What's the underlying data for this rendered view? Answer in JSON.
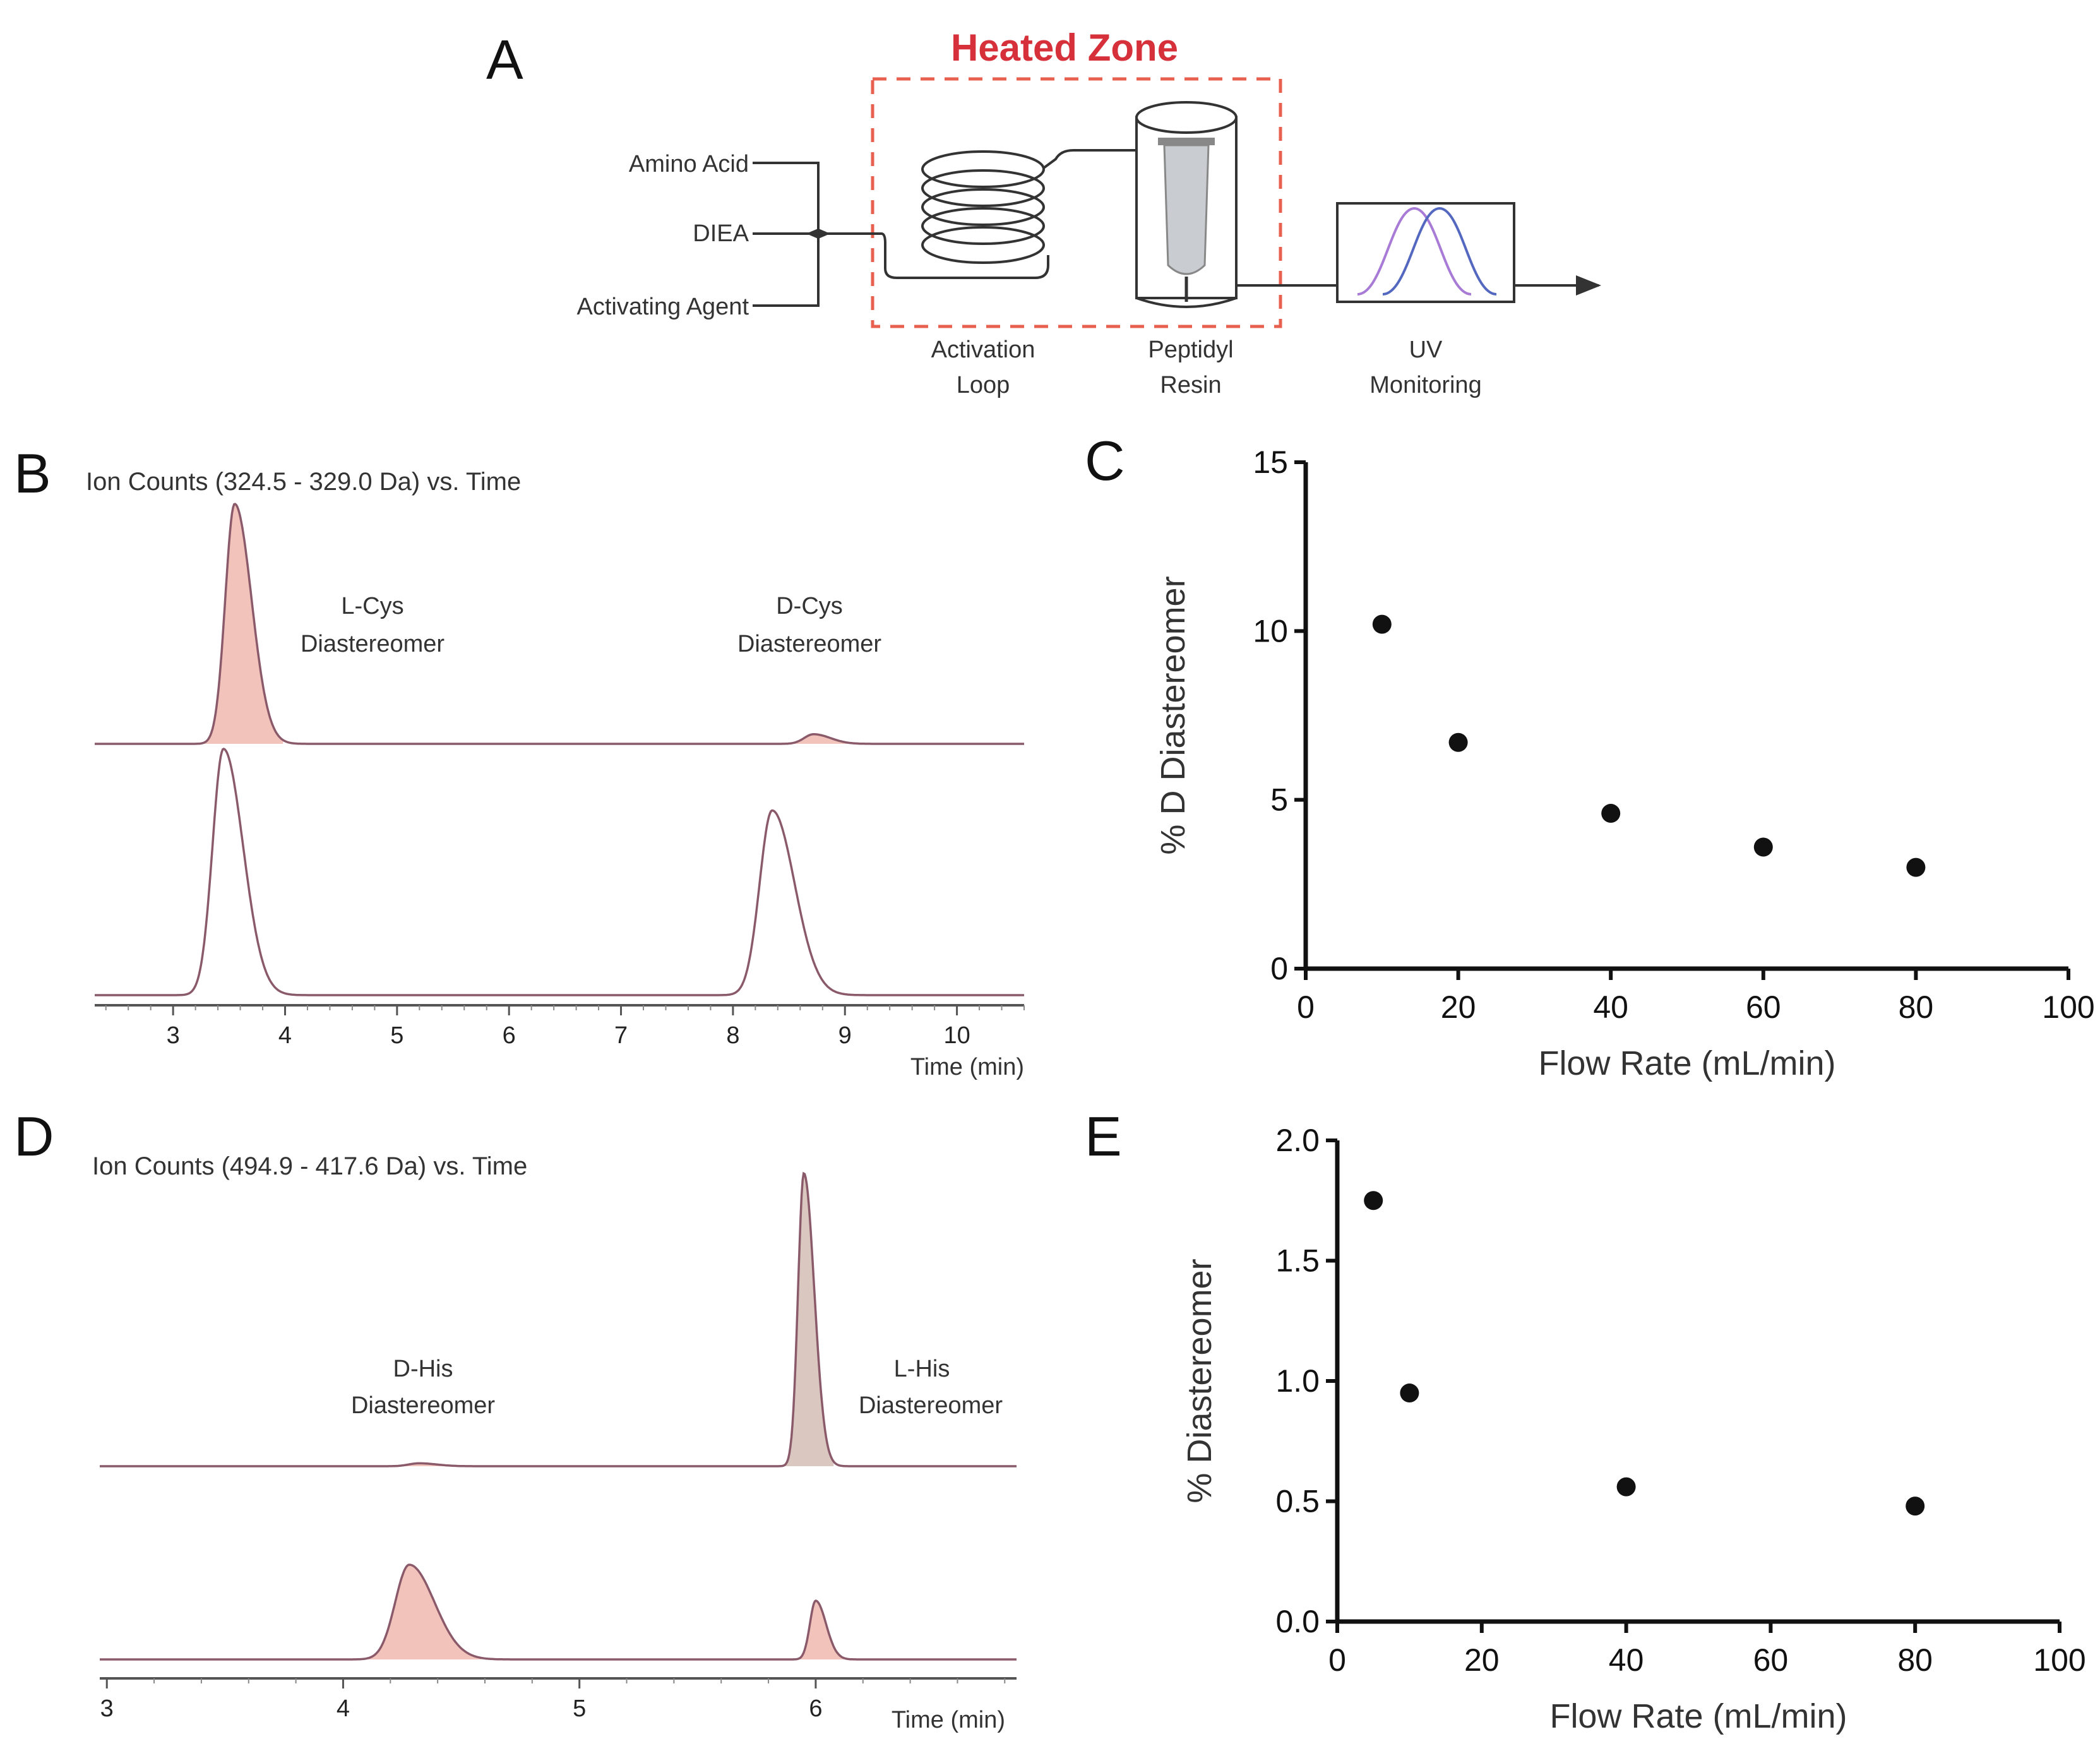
{
  "panels": {
    "A": {
      "label": "A",
      "heated_zone": "Heated Zone",
      "inputs": [
        "Amino Acid",
        "DIEA",
        "Activating Agent"
      ],
      "components": [
        {
          "id": "activation_loop",
          "label_line1": "Activation",
          "label_line2": "Loop"
        },
        {
          "id": "peptidyl_resin",
          "label_line1": "Peptidyl",
          "label_line2": "Resin"
        },
        {
          "id": "uv_monitoring",
          "label_line1": "UV",
          "label_line2": "Monitoring"
        }
      ]
    },
    "B": {
      "label": "B",
      "title": "Ion Counts (324.5 - 329.0 Da) vs. Time",
      "peak_labels": [
        {
          "line1": "L-Cys",
          "line2": "Diastereomer"
        },
        {
          "line1": "D-Cys",
          "line2": "Diastereomer"
        }
      ],
      "x_ticks": [
        "3",
        "4",
        "5",
        "6",
        "7",
        "8",
        "9",
        "10"
      ],
      "xlabel": "Time (min)"
    },
    "C": {
      "label": "C"
    },
    "D": {
      "label": "D",
      "title": "Ion Counts (494.9 - 417.6 Da) vs. Time",
      "peak_labels": [
        {
          "line1": "D-His",
          "line2": "Diastereomer"
        },
        {
          "line1": "L-His",
          "line2": "Diastereomer"
        }
      ],
      "x_ticks": [
        "3",
        "4",
        "5",
        "6"
      ],
      "xlabel": "Time (min)"
    },
    "E": {
      "label": "E"
    }
  },
  "colors": {
    "heated": "#d6303a",
    "trace": "#8a5a6a",
    "fill_pink": "#f2c3bb",
    "fill_tan": "#d9c7c0",
    "uv_purple": "#a77bd6",
    "uv_blue": "#5468c0"
  },
  "chart_data": [
    {
      "panel": "B",
      "type": "line",
      "title": "Ion Counts (324.5 - 329.0 Da) vs. Time",
      "xlabel": "Time (min)",
      "xlim": [
        2.3,
        10.6
      ],
      "series": [
        {
          "name": "top trace",
          "peaks": [
            {
              "center": 3.55,
              "rel_height": 1.0,
              "filled": true
            },
            {
              "center": 8.72,
              "rel_height": 0.04,
              "filled": true
            }
          ]
        },
        {
          "name": "bottom trace",
          "peaks": [
            {
              "center": 3.45,
              "rel_height": 1.0
            },
            {
              "center": 8.35,
              "rel_height": 0.75
            }
          ]
        }
      ]
    },
    {
      "panel": "C",
      "type": "scatter",
      "x": [
        10,
        20,
        40,
        60,
        80
      ],
      "y": [
        10.2,
        6.7,
        4.6,
        3.6,
        3.0
      ],
      "xlabel": "Flow Rate (mL/min)",
      "ylabel": "% D Diastereomer",
      "xlim": [
        0,
        100
      ],
      "ylim": [
        0,
        15
      ],
      "x_ticks": [
        "0",
        "20",
        "40",
        "60",
        "80",
        "100"
      ],
      "y_ticks": [
        "0",
        "5",
        "10",
        "15"
      ]
    },
    {
      "panel": "D",
      "type": "line",
      "title": "Ion Counts (494.9 - 417.6 Da) vs. Time",
      "xlabel": "Time (min)",
      "xlim": [
        2.97,
        6.85
      ],
      "series": [
        {
          "name": "top trace",
          "peaks": [
            {
              "center": 4.32,
              "rel_height": 0.01,
              "filled": true
            },
            {
              "center": 5.95,
              "rel_height": 1.0,
              "filled": true
            }
          ]
        },
        {
          "name": "bottom trace",
          "peaks": [
            {
              "center": 4.28,
              "rel_height": 1.0,
              "filled": true
            },
            {
              "center": 6.0,
              "rel_height": 0.62,
              "filled": true
            }
          ]
        }
      ]
    },
    {
      "panel": "E",
      "type": "scatter",
      "x": [
        5,
        10,
        40,
        80
      ],
      "y": [
        1.75,
        0.95,
        0.56,
        0.48
      ],
      "xlabel": "Flow Rate (mL/min)",
      "ylabel": "% Diastereomer",
      "xlim": [
        0,
        100
      ],
      "ylim": [
        0,
        2.0
      ],
      "x_ticks": [
        "0",
        "20",
        "40",
        "60",
        "80",
        "100"
      ],
      "y_ticks": [
        "0.0",
        "0.5",
        "1.0",
        "1.5",
        "2.0"
      ]
    }
  ]
}
